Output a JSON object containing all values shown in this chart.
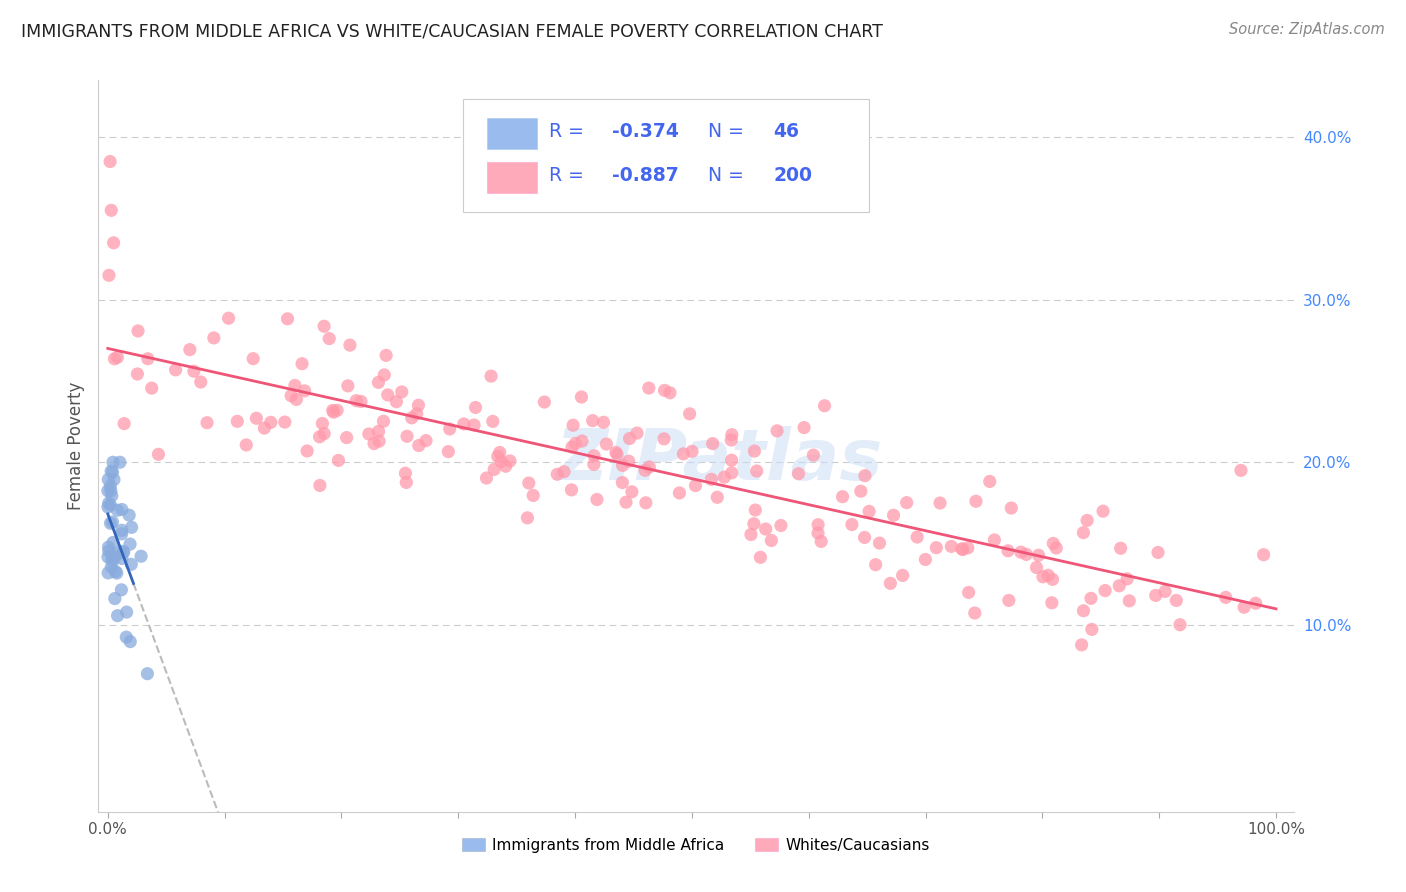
{
  "title": "IMMIGRANTS FROM MIDDLE AFRICA VS WHITE/CAUCASIAN FEMALE POVERTY CORRELATION CHART",
  "source": "Source: ZipAtlas.com",
  "ylabel": "Female Poverty",
  "blue_R": -0.374,
  "blue_N": 46,
  "pink_R": -0.887,
  "pink_N": 200,
  "blue_color": "#99BBEE",
  "pink_color": "#FFAABB",
  "blue_scatter_color": "#88AADD",
  "pink_scatter_color": "#FF99AA",
  "blue_line_color": "#3366BB",
  "pink_line_color": "#EE5577",
  "dashed_line_color": "#BBBBBB",
  "watermark": "ZIPatlas",
  "legend_label_blue": "Immigrants from Middle Africa",
  "legend_label_pink": "Whites/Caucasians",
  "background_color": "#FFFFFF",
  "grid_color": "#CCCCCC",
  "title_color": "#222222",
  "right_tick_color": "#4488FF",
  "legend_text_color": "#222222",
  "legend_value_color": "#4466EE"
}
